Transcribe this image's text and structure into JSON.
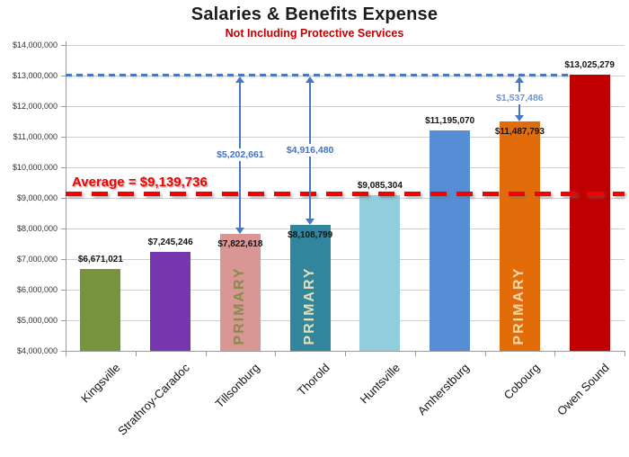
{
  "chart_data": {
    "type": "bar",
    "title": "Salaries & Benefits Expense",
    "subtitle": "Not Including Protective Services",
    "categories": [
      "Kingsville",
      "Strathroy-Caradoc",
      "Tillsonburg",
      "Thorold",
      "Huntsville",
      "Amherstburg",
      "Cobourg",
      "Owen Sound"
    ],
    "values": [
      6671021,
      7245246,
      7822618,
      8108799,
      9085304,
      11195070,
      11487793,
      13025279
    ],
    "value_labels": [
      "$6,671,021",
      "$7,245,246",
      "$7,822,618",
      "$8,108,799",
      "$9,085,304",
      "$11,195,070",
      "$11,487,793",
      "$13,025,279"
    ],
    "value_label_inside": [
      false,
      false,
      true,
      true,
      false,
      false,
      true,
      false
    ],
    "bar_colors": [
      "#77933C",
      "#7636AE",
      "#D99694",
      "#31859C",
      "#92CDDC",
      "#558ED5",
      "#E36C0A",
      "#C00000"
    ],
    "ylim": [
      4000000,
      14000000
    ],
    "y_tick_labels": [
      "$14,000,000",
      "$13,000,000",
      "$12,000,000",
      "$11,000,000",
      "$10,000,000",
      "$9,000,000",
      "$8,000,000",
      "$7,000,000",
      "$6,000,000",
      "$5,000,000",
      "$4,000,000"
    ],
    "y_tick_values": [
      14000000,
      13000000,
      12000000,
      11000000,
      10000000,
      9000000,
      8000000,
      7000000,
      6000000,
      5000000,
      4000000
    ],
    "grid": "horizontal",
    "average": {
      "value": 9139736,
      "label": "Average = $9,139,736"
    },
    "reference_line": {
      "value": 13025279
    },
    "arrows": [
      {
        "category": "Tillsonburg",
        "label": "$5,202,661",
        "label_color": "#4472C4"
      },
      {
        "category": "Thorold",
        "label": "$4,916,480",
        "label_color": "#4472C4"
      },
      {
        "category": "Cobourg",
        "label": "$1,537,486",
        "label_color": "#6E96D6"
      }
    ],
    "primary_overlay": {
      "text": "PRIMARY",
      "bars": {
        "Tillsonburg": "#8A8A4E",
        "Thorold": "#E3DFB8",
        "Cobourg": "#F7D8A9"
      }
    }
  },
  "colors": {
    "axis": "#9a9a9a",
    "gridline": "#cfcfcf",
    "arrow_blue": "#4778C6",
    "reference_blue": "#4778C6",
    "average_red": "#F40000",
    "subtitle_red": "#C00000",
    "label_black": "#141414"
  }
}
